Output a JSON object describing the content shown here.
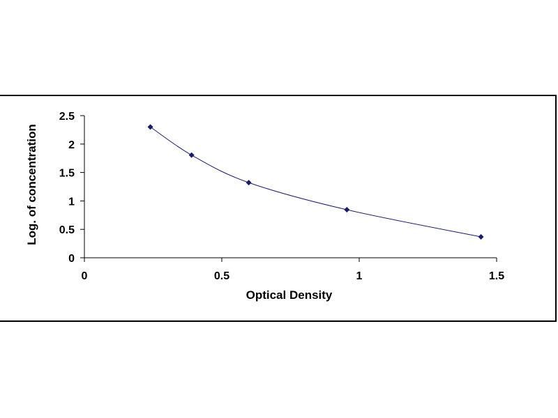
{
  "chart_data": {
    "type": "scatter",
    "title": "",
    "xlabel": "Optical Density",
    "ylabel": "Log. of concentration",
    "xlim": [
      0,
      1.5
    ],
    "ylim": [
      0,
      2.5
    ],
    "x_ticks": [
      "0",
      "0.5",
      "1",
      "1.5"
    ],
    "y_ticks": [
      "0",
      "0.5",
      "1",
      "1.5",
      "2",
      "2.5"
    ],
    "x_tick_values": [
      0,
      0.5,
      1,
      1.5
    ],
    "y_tick_values": [
      0,
      0.5,
      1,
      1.5,
      2,
      2.5
    ],
    "grid": false,
    "legend": "none",
    "trendline": true,
    "marker_color": "#1a1a6e",
    "line_color": "#1a1a6e",
    "series": [
      {
        "x": [
          0.24,
          0.39,
          0.598,
          0.955,
          1.443
        ],
        "y": [
          2.301,
          1.806,
          1.322,
          0.845,
          0.368
        ]
      }
    ]
  }
}
